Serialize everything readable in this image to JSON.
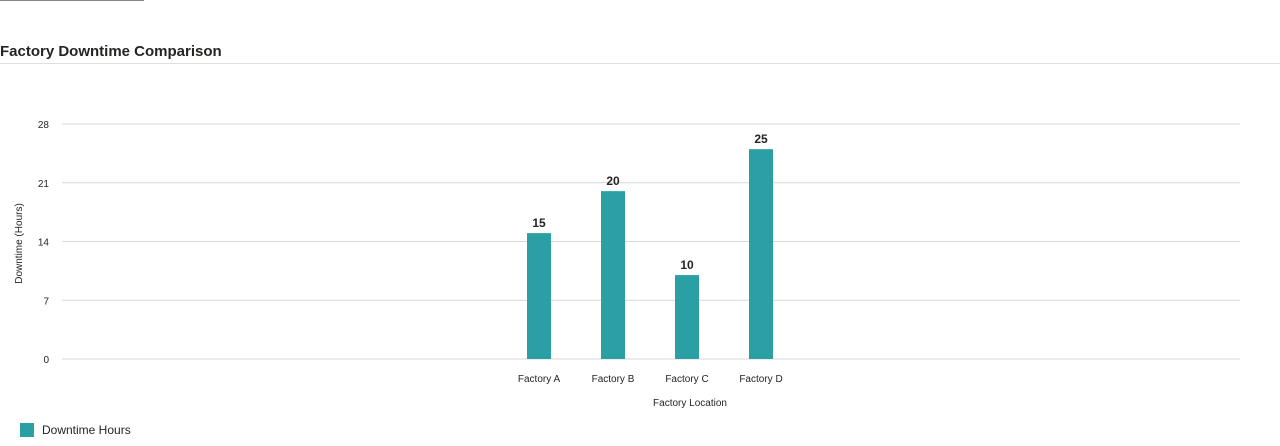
{
  "colors": {
    "bar": "#2aa0a4",
    "grid": "#d9d9d9",
    "text": "#252423",
    "axis_text": "#252423"
  },
  "chart_data": {
    "type": "bar",
    "title": "Factory Downtime Comparison",
    "categories": [
      "Factory A",
      "Factory B",
      "Factory C",
      "Factory D"
    ],
    "series": [
      {
        "name": "Downtime Hours",
        "values": [
          15,
          20,
          10,
          25
        ]
      }
    ],
    "xlabel": "Factory Location",
    "ylabel": "Downtime (Hours)",
    "ylim": [
      0,
      28
    ],
    "yticks": [
      0,
      7,
      14,
      21,
      28
    ],
    "grid": true,
    "data_labels": true,
    "legend_position": "bottom-left"
  }
}
